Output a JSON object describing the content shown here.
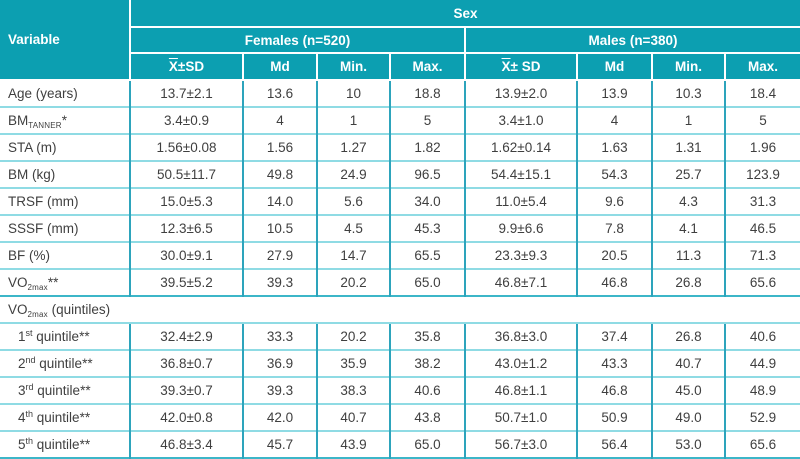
{
  "colors": {
    "header_bg": "#0c9fb1",
    "header_text": "#ffffff",
    "grid_vertical": "#2da4bc",
    "grid_horizontal": "#8fdbe4",
    "strong_line": "#3cb6c8",
    "body_text": "#3f3f3f"
  },
  "table": {
    "variable_header": "Variable",
    "sex_header": "Sex",
    "groups": [
      {
        "label": "Females (n=520)",
        "mean_x": "X",
        "mean_rest": "±SD",
        "md": "Md",
        "min": "Min.",
        "max": "Max."
      },
      {
        "label": "Males (n=380)",
        "mean_x": "X",
        "mean_rest": "± SD",
        "md": "Md",
        "min": "Min.",
        "max": "Max."
      }
    ],
    "rows": [
      {
        "label": [
          {
            "t": "Age (years)"
          }
        ],
        "values": [
          "13.7±2.1",
          "13.6",
          "10",
          "18.8",
          "13.9±2.0",
          "13.9",
          "10.3",
          "18.4"
        ]
      },
      {
        "label": [
          {
            "t": "BM"
          },
          {
            "t": "TANNER",
            "s": "sub"
          },
          {
            "t": "*"
          }
        ],
        "values": [
          "3.4±0.9",
          "4",
          "1",
          "5",
          "3.4±1.0",
          "4",
          "1",
          "5"
        ]
      },
      {
        "label": [
          {
            "t": "STA (m)"
          }
        ],
        "values": [
          "1.56±0.08",
          "1.56",
          "1.27",
          "1.82",
          "1.62±0.14",
          "1.63",
          "1.31",
          "1.96"
        ]
      },
      {
        "label": [
          {
            "t": "BM (kg)"
          }
        ],
        "values": [
          "50.5±11.7",
          "49.8",
          "24.9",
          "96.5",
          "54.4±15.1",
          "54.3",
          "25.7",
          "123.9"
        ]
      },
      {
        "label": [
          {
            "t": "TRSF (mm)"
          }
        ],
        "values": [
          "15.0±5.3",
          "14.0",
          "5.6",
          "34.0",
          "11.0±5.4",
          "9.6",
          "4.3",
          "31.3"
        ]
      },
      {
        "label": [
          {
            "t": "SSSF (mm)"
          }
        ],
        "values": [
          "12.3±6.5",
          "10.5",
          "4.5",
          "45.3",
          "9.9±6.6",
          "7.8",
          "4.1",
          "46.5"
        ]
      },
      {
        "label": [
          {
            "t": "BF (%)"
          }
        ],
        "values": [
          "30.0±9.1",
          "27.9",
          "14.7",
          "65.5",
          "23.3±9.3",
          "20.5",
          "11.3",
          "71.3"
        ]
      },
      {
        "label": [
          {
            "t": "VO"
          },
          {
            "t": "2max",
            "s": "sub"
          },
          {
            "t": "**"
          }
        ],
        "values": [
          "39.5±5.2",
          "39.3",
          "20.2",
          "65.0",
          "46.8±7.1",
          "46.8",
          "26.8",
          "65.6"
        ]
      },
      {
        "section": true,
        "label": [
          {
            "t": "VO"
          },
          {
            "t": "2max",
            "s": "sub"
          },
          {
            "t": " (quintiles)"
          }
        ]
      },
      {
        "indent": true,
        "label": [
          {
            "t": "1"
          },
          {
            "t": "st",
            "s": "sup"
          },
          {
            "t": " quintile**"
          }
        ],
        "values": [
          "32.4±2.9",
          "33.3",
          "20.2",
          "35.8",
          "36.8±3.0",
          "37.4",
          "26.8",
          "40.6"
        ]
      },
      {
        "indent": true,
        "label": [
          {
            "t": "2"
          },
          {
            "t": "nd",
            "s": "sup"
          },
          {
            "t": " quintile**"
          }
        ],
        "values": [
          "36.8±0.7",
          "36.9",
          "35.9",
          "38.2",
          "43.0±1.2",
          "43.3",
          "40.7",
          "44.9"
        ]
      },
      {
        "indent": true,
        "label": [
          {
            "t": "3"
          },
          {
            "t": "rd",
            "s": "sup"
          },
          {
            "t": " quintile**"
          }
        ],
        "values": [
          "39.3±0.7",
          "39.3",
          "38.3",
          "40.6",
          "46.8±1.1",
          "46.8",
          "45.0",
          "48.9"
        ]
      },
      {
        "indent": true,
        "label": [
          {
            "t": "4"
          },
          {
            "t": "th",
            "s": "sup"
          },
          {
            "t": " quintile**"
          }
        ],
        "values": [
          "42.0±0.8",
          "42.0",
          "40.7",
          "43.8",
          "50.7±1.0",
          "50.9",
          "49.0",
          "52.9"
        ]
      },
      {
        "indent": true,
        "label": [
          {
            "t": "5"
          },
          {
            "t": "th",
            "s": "sup"
          },
          {
            "t": " quintile**"
          }
        ],
        "values": [
          "46.8±3.4",
          "45.7",
          "43.9",
          "65.0",
          "56.7±3.0",
          "56.4",
          "53.0",
          "65.6"
        ]
      }
    ]
  }
}
